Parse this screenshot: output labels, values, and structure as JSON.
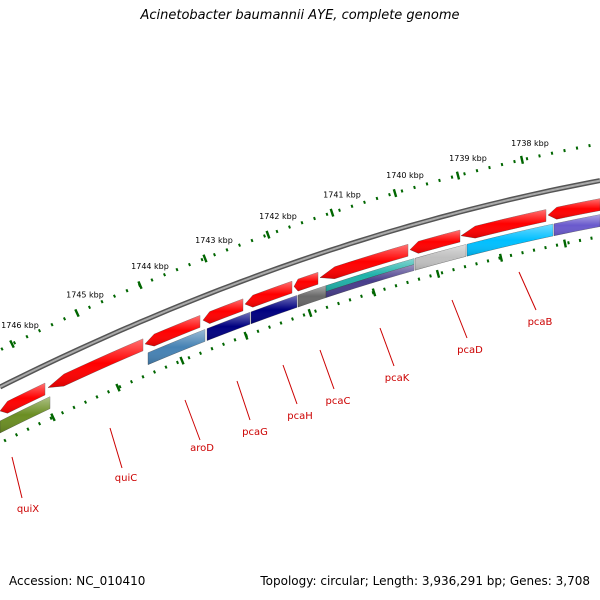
{
  "title": "Acinetobacter baumannii AYE, complete genome",
  "footer": {
    "accession": "Accession: NC_010410",
    "stats": "Topology: circular; Length: 3,936,291 bp; Genes: 3,708"
  },
  "map": {
    "ruler_labels": [
      "1746 kbp",
      "1745 kbp",
      "1744 kbp",
      "1743 kbp",
      "1742 kbp",
      "1741 kbp",
      "1740 kbp",
      "1739 kbp",
      "1738 kbp"
    ],
    "gene_labels": [
      "quiX",
      "quiC",
      "aroD",
      "pcaG",
      "pcaH",
      "pcaC",
      "pcaK",
      "pcaD",
      "pcaB"
    ],
    "colors": {
      "forward_cds": "#ff0000",
      "backbone": "#777777",
      "ruler_ticks": "#006600",
      "label_text": "#cc0000",
      "quiX": "#6b8e23",
      "aroD": "#4682b4",
      "pcaG": "#000080",
      "pcaH": "#000080",
      "pcaC": "#696969",
      "pcaK": "#20b2aa",
      "pcaK_stripe": "#483d8b",
      "pcaD": "#c0c0c0",
      "pcaB": "#00bfff",
      "pcaB_next": "#6a5acd"
    }
  }
}
